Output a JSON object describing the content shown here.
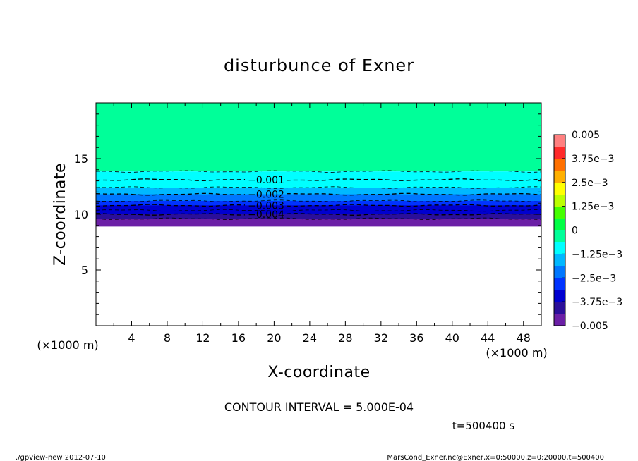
{
  "chart_data": {
    "type": "contour",
    "title": "disturbunce of Exner",
    "xlabel": "X-coordinate",
    "ylabel": "Z-coordinate",
    "x_units": "(×1000 m)",
    "x_units_right": "(×1000 m)",
    "y_units": "(×1000 m)",
    "xlim": [
      0,
      50
    ],
    "ylim": [
      0,
      20
    ],
    "x_ticks": [
      4,
      8,
      12,
      16,
      20,
      24,
      28,
      32,
      36,
      40,
      44,
      48
    ],
    "x_tick_labels": [
      "4",
      "8",
      "12",
      "16",
      "20",
      "24",
      "28",
      "32",
      "36",
      "40",
      "44",
      "48"
    ],
    "y_ticks": [
      5,
      10,
      15
    ],
    "y_tick_labels": [
      "5",
      "10",
      "15"
    ],
    "grid": false,
    "contour_interval_text": "CONTOUR INTERVAL = 5.000E-04",
    "time_text": "t=500400 s",
    "contour_lines": [
      {
        "value": -0.0005,
        "z": 13.85,
        "label": ""
      },
      {
        "value": -0.001,
        "z": 13.1,
        "label": "−0.001"
      },
      {
        "value": -0.0015,
        "z": 12.4,
        "label": ""
      },
      {
        "value": -0.002,
        "z": 11.8,
        "label": "−0.002"
      },
      {
        "value": -0.0025,
        "z": 11.2,
        "label": ""
      },
      {
        "value": -0.003,
        "z": 10.8,
        "label": "−0.003"
      },
      {
        "value": -0.0035,
        "z": 10.35,
        "label": ""
      },
      {
        "value": -0.004,
        "z": 10.0,
        "label": "−0.004"
      },
      {
        "value": -0.0045,
        "z": 9.6,
        "label": ""
      }
    ],
    "data_bottom_z": 8.9,
    "colorbar": {
      "min": -0.005,
      "max": 0.005,
      "interval": 0.000625,
      "levels": [
        -0.005,
        -0.004375,
        -0.00375,
        -0.003125,
        -0.0025,
        -0.001875,
        -0.00125,
        -0.000625,
        0,
        0.000625,
        0.00125,
        0.001875,
        0.0025,
        0.003125,
        0.00375,
        0.004375,
        0.005
      ],
      "colors": [
        "#6b1fa6",
        "#2b0f9a",
        "#0000d0",
        "#0033ff",
        "#0077ff",
        "#00b8ff",
        "#00ffff",
        "#00ff99",
        "#00ff44",
        "#44ff00",
        "#bbff00",
        "#ffff00",
        "#ffb000",
        "#ff7000",
        "#ff2a2a",
        "#ff8080"
      ],
      "tick_values": [
        -0.005,
        -0.00375,
        -0.0025,
        -0.00125,
        0,
        0.00125,
        0.0025,
        0.00375,
        0.005
      ],
      "tick_labels": [
        "−0.005",
        "−3.75e−3",
        "−2.5e−3",
        "−1.25e−3",
        "0",
        "1.25e−3",
        "2.5e−3",
        "3.75e−3",
        "0.005"
      ]
    }
  },
  "footer": {
    "left": "./gpview-new   2012-07-10",
    "right": "MarsCond_Exner.nc@Exner,x=0:50000,z=0:20000,t=500400"
  }
}
